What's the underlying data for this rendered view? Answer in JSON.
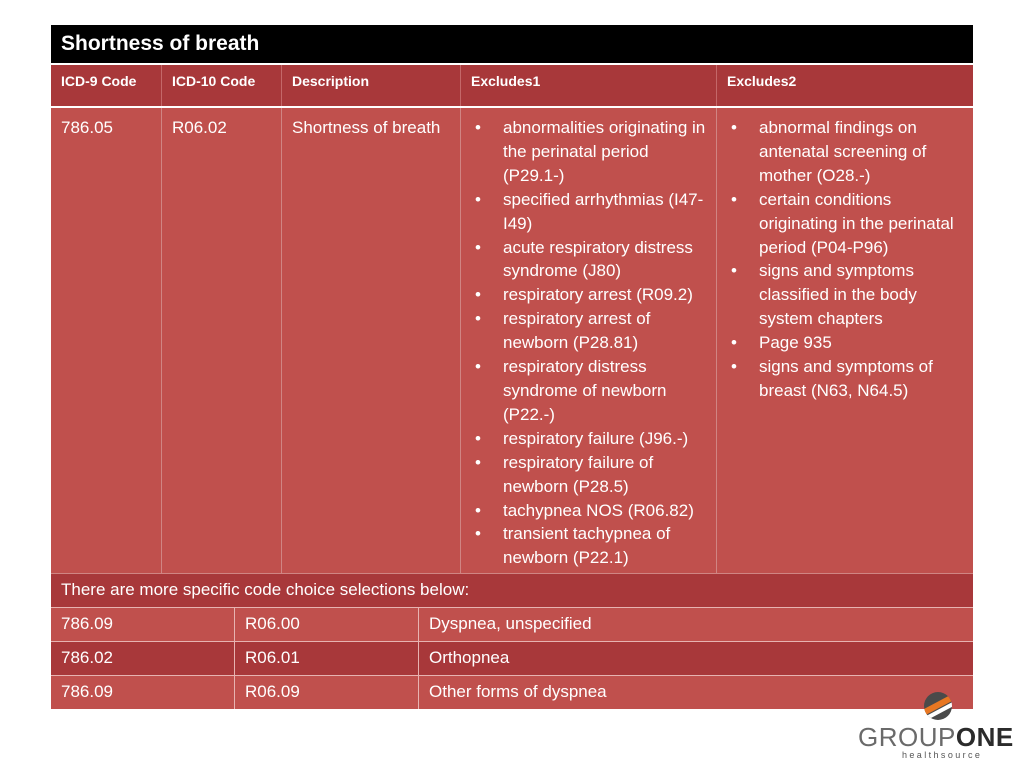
{
  "title": "Shortness of breath",
  "headers": [
    "ICD-9 Code",
    "ICD-10 Code",
    "Description",
    "Excludes1",
    "Excludes2"
  ],
  "main_row": {
    "icd9": "786.05",
    "icd10": "R06.02",
    "description": "Shortness of breath",
    "excludes1": [
      "abnormalities originating in the perinatal period (P29.1-)",
      "specified arrhythmias (I47-I49)",
      "acute respiratory distress syndrome (J80)",
      "respiratory arrest (R09.2)",
      "respiratory arrest of newborn (P28.81)",
      "respiratory distress syndrome of newborn (P22.-)",
      "respiratory failure (J96.-)",
      "respiratory failure of newborn (P28.5)",
      "tachypnea NOS (R06.82)",
      "transient tachypnea of newborn (P22.1)"
    ],
    "excludes2": [
      "abnormal findings on antenatal screening of mother (O28.-)",
      "certain conditions originating in the perinatal period (P04-P96)",
      "signs and symptoms classified in the body system chapters",
      "Page 935",
      "signs and symptoms of breast (N63, N64.5)"
    ]
  },
  "note": "There are more specific code choice selections below:",
  "sub_rows": [
    {
      "icd9": "786.09",
      "icd10": "R06.00",
      "description": "Dyspnea, unspecified"
    },
    {
      "icd9": "786.02",
      "icd10": "R06.01",
      "description": "Orthopnea"
    },
    {
      "icd9": "786.09",
      "icd10": "R06.09",
      "description": "Other forms of dyspnea"
    }
  ],
  "logo": {
    "word1": "GROUP",
    "word2": "ONE",
    "tagline": "healthsource"
  },
  "colors": {
    "title_bg": "#000000",
    "header_bg": "#a8383a",
    "body_bg": "#c0504d",
    "accent_orange": "#e87722"
  }
}
